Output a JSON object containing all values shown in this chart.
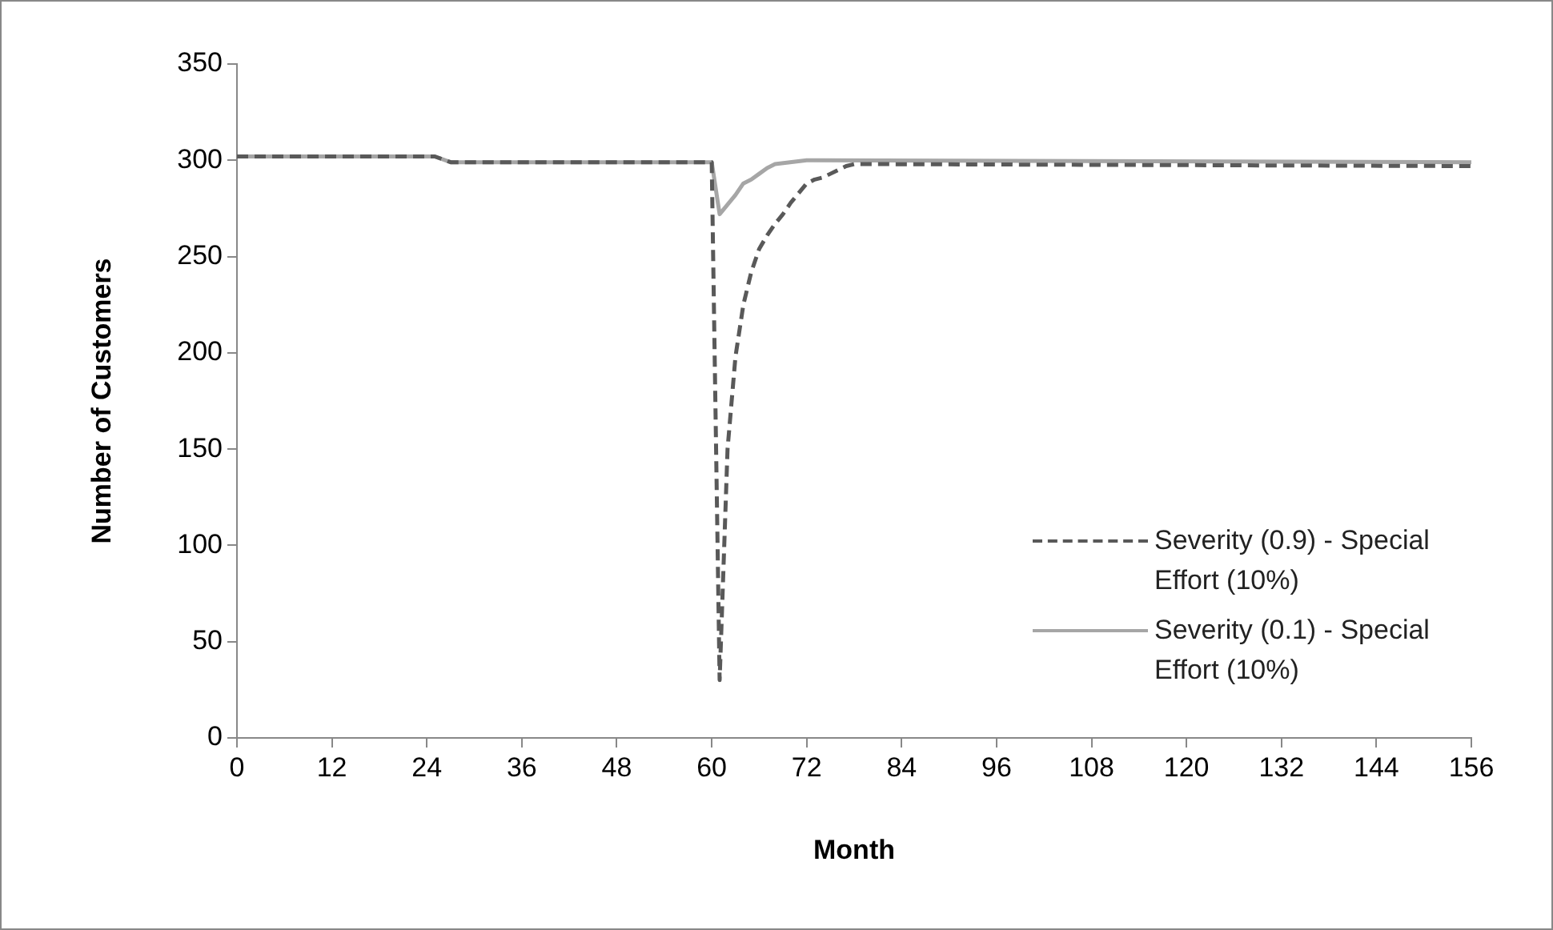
{
  "chart_data": {
    "type": "line",
    "xlabel": "Month",
    "ylabel": "Number of Customers",
    "xlim": [
      0,
      156
    ],
    "xticks": [
      0,
      12,
      24,
      36,
      48,
      60,
      72,
      84,
      96,
      108,
      120,
      132,
      144,
      156
    ],
    "ylim": [
      0,
      350
    ],
    "yticks": [
      0,
      50,
      100,
      150,
      200,
      250,
      300,
      350
    ],
    "grid": false,
    "legend": "right",
    "marker": "none",
    "series": [
      {
        "name": "Severity (0.9) - Special Effort (10%)",
        "color": "#595959",
        "line_style": "dashed",
        "x": [
          0,
          25,
          27,
          60,
          61,
          62,
          63,
          64,
          65,
          66,
          67,
          68,
          69,
          70,
          71,
          72,
          73,
          74,
          75,
          76,
          77,
          78,
          79,
          82,
          156
        ],
        "values": [
          302,
          302,
          299,
          299,
          30,
          150,
          198,
          225,
          242,
          254,
          261,
          267,
          272,
          278,
          283,
          288,
          290,
          291,
          293,
          295,
          297,
          298,
          298,
          298,
          297
        ]
      },
      {
        "name": "Severity (0.1) - Special Effort (10%)",
        "color": "#a6a6a6",
        "line_style": "solid",
        "x": [
          0,
          25,
          27,
          60,
          61,
          62,
          63,
          64,
          65,
          66,
          67,
          68,
          72,
          156
        ],
        "values": [
          302,
          302,
          299,
          299,
          272,
          277,
          282,
          288,
          290,
          293,
          296,
          298,
          300,
          299
        ]
      }
    ]
  }
}
